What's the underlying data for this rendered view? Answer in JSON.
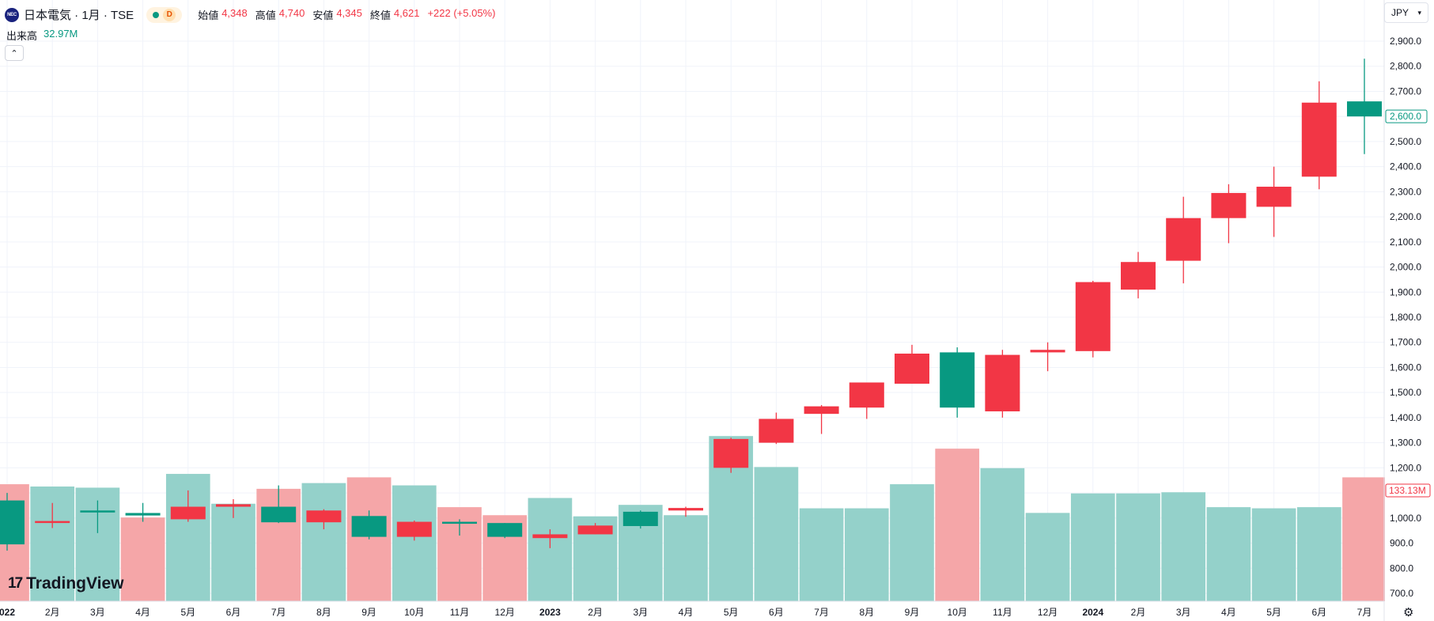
{
  "header": {
    "logo_text": "NEC",
    "title": "日本電気 · 1月 · TSE",
    "badge_letter": "D",
    "ohlc": {
      "open_label": "始値",
      "open": "4,348",
      "high_label": "高値",
      "high": "4,740",
      "low_label": "安値",
      "low": "4,345",
      "close_label": "終値",
      "close": "4,621",
      "change": "+222 (+5.05%)"
    }
  },
  "volume_legend": {
    "label": "出来高",
    "value": "32.97M"
  },
  "currency": "JPY",
  "watermark": "TradingView",
  "colors": {
    "up": "#089981",
    "down": "#f23645",
    "up_volume": "#94d1ca",
    "down_volume": "#f5a6a8"
  },
  "chart_data": {
    "type": "candlestick",
    "yticks": [
      "2,900.0",
      "2,800.0",
      "2,700.0",
      "2,600.0",
      "2,500.0",
      "2,400.0",
      "2,300.0",
      "2,200.0",
      "2,100.0",
      "2,000.0",
      "1,900.0",
      "1,800.0",
      "1,700.0",
      "1,600.0",
      "1,500.0",
      "1,400.0",
      "1,300.0",
      "1,200.0",
      "1,100.0",
      "1,000.0",
      "900.0",
      "800.0",
      "700.0"
    ],
    "ylim": [
      660,
      2960
    ],
    "last_price_label": "2,600.0",
    "volume_label": "133.13M",
    "x_labels": [
      "022",
      "2月",
      "3月",
      "4月",
      "5月",
      "6月",
      "7月",
      "8月",
      "9月",
      "10月",
      "11月",
      "12月",
      "2023",
      "2月",
      "3月",
      "4月",
      "5月",
      "6月",
      "7月",
      "8月",
      "9月",
      "10月",
      "11月",
      "12月",
      "2024",
      "2月",
      "3月",
      "4月",
      "5月",
      "6月",
      "7月"
    ],
    "candles": [
      {
        "o": 895,
        "h": 1100,
        "l": 870,
        "c": 1070
      },
      {
        "o": 988,
        "h": 1060,
        "l": 960,
        "c": 985
      },
      {
        "o": 1030,
        "h": 1070,
        "l": 940,
        "c": 1030
      },
      {
        "o": 1010,
        "h": 1060,
        "l": 985,
        "c": 1020
      },
      {
        "o": 1045,
        "h": 1110,
        "l": 985,
        "c": 995
      },
      {
        "o": 1055,
        "h": 1075,
        "l": 1000,
        "c": 1045
      },
      {
        "o": 983,
        "h": 1130,
        "l": 980,
        "c": 1045
      },
      {
        "o": 1030,
        "h": 1035,
        "l": 955,
        "c": 983
      },
      {
        "o": 925,
        "h": 1030,
        "l": 915,
        "c": 1008
      },
      {
        "o": 985,
        "h": 990,
        "l": 910,
        "c": 925
      },
      {
        "o": 978,
        "h": 995,
        "l": 930,
        "c": 985
      },
      {
        "o": 925,
        "h": 980,
        "l": 920,
        "c": 980
      },
      {
        "o": 935,
        "h": 955,
        "l": 880,
        "c": 920
      },
      {
        "o": 970,
        "h": 980,
        "l": 935,
        "c": 935
      },
      {
        "o": 968,
        "h": 1030,
        "l": 958,
        "c": 1025
      },
      {
        "o": 1040,
        "h": 1045,
        "l": 1005,
        "c": 1030
      },
      {
        "o": 1315,
        "h": 1320,
        "l": 1180,
        "c": 1200
      },
      {
        "o": 1395,
        "h": 1420,
        "l": 1295,
        "c": 1300
      },
      {
        "o": 1445,
        "h": 1450,
        "l": 1335,
        "c": 1415
      },
      {
        "o": 1540,
        "h": 1540,
        "l": 1395,
        "c": 1440
      },
      {
        "o": 1655,
        "h": 1690,
        "l": 1535,
        "c": 1535
      },
      {
        "o": 1440,
        "h": 1680,
        "l": 1400,
        "c": 1660
      },
      {
        "o": 1650,
        "h": 1670,
        "l": 1400,
        "c": 1425
      },
      {
        "o": 1670,
        "h": 1700,
        "l": 1585,
        "c": 1660
      },
      {
        "o": 1940,
        "h": 1945,
        "l": 1640,
        "c": 1665
      },
      {
        "o": 2020,
        "h": 2060,
        "l": 1875,
        "c": 1910
      },
      {
        "o": 2195,
        "h": 2280,
        "l": 1935,
        "c": 2025
      },
      {
        "o": 2295,
        "h": 2330,
        "l": 2095,
        "c": 2195
      },
      {
        "o": 2320,
        "h": 2400,
        "l": 2120,
        "c": 2240
      },
      {
        "o": 2655,
        "h": 2740,
        "l": 2310,
        "c": 2360
      },
      {
        "o": 2600,
        "h": 2830,
        "l": 2450,
        "c": 2660
      }
    ],
    "volumes": [
      {
        "value": 102,
        "dir": "down"
      },
      {
        "value": 100,
        "dir": "up"
      },
      {
        "value": 99,
        "dir": "up"
      },
      {
        "value": 73,
        "dir": "down"
      },
      {
        "value": 111,
        "dir": "up"
      },
      {
        "value": 85,
        "dir": "up"
      },
      {
        "value": 98,
        "dir": "down"
      },
      {
        "value": 103,
        "dir": "up"
      },
      {
        "value": 108,
        "dir": "down"
      },
      {
        "value": 101,
        "dir": "up"
      },
      {
        "value": 82,
        "dir": "down"
      },
      {
        "value": 75,
        "dir": "down"
      },
      {
        "value": 90,
        "dir": "up"
      },
      {
        "value": 74,
        "dir": "up"
      },
      {
        "value": 84,
        "dir": "up"
      },
      {
        "value": 75,
        "dir": "up"
      },
      {
        "value": 144,
        "dir": "up"
      },
      {
        "value": 117,
        "dir": "up"
      },
      {
        "value": 81,
        "dir": "up"
      },
      {
        "value": 81,
        "dir": "up"
      },
      {
        "value": 102,
        "dir": "up"
      },
      {
        "value": 133,
        "dir": "down"
      },
      {
        "value": 116,
        "dir": "up"
      },
      {
        "value": 77,
        "dir": "up"
      },
      {
        "value": 94,
        "dir": "up"
      },
      {
        "value": 94,
        "dir": "up"
      },
      {
        "value": 95,
        "dir": "up"
      },
      {
        "value": 82,
        "dir": "up"
      },
      {
        "value": 81,
        "dir": "up"
      },
      {
        "value": 82,
        "dir": "up"
      },
      {
        "value": 108,
        "dir": "down"
      }
    ],
    "volume_max": 160
  }
}
